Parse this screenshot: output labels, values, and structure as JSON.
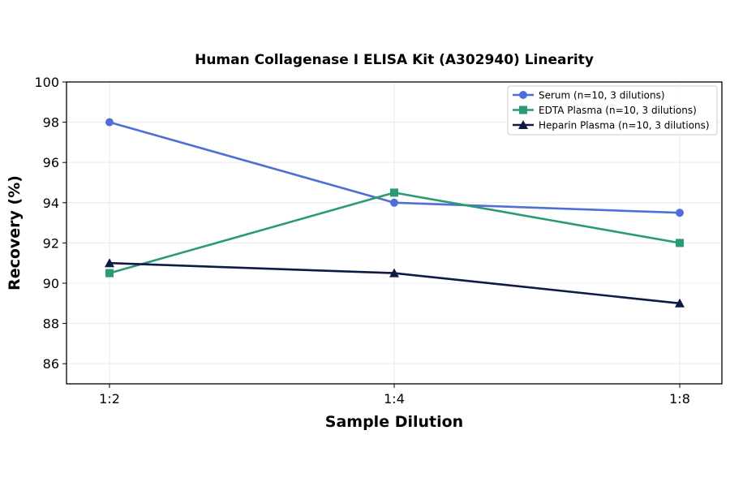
{
  "chart_data": {
    "type": "line",
    "title": "Human Collagenase I ELISA Kit (A302940) Linearity",
    "xlabel": "Sample Dilution",
    "ylabel": "Recovery (%)",
    "categories": [
      "1:2",
      "1:4",
      "1:8"
    ],
    "ylim": [
      85,
      100
    ],
    "yticks": [
      86,
      88,
      90,
      92,
      94,
      96,
      98,
      100
    ],
    "grid": true,
    "legend_position": "top-right",
    "series": [
      {
        "name": "Serum (n=10, 3 dilutions)",
        "values": [
          98,
          94,
          93.5
        ],
        "color": "#4f6fd6",
        "marker": "circle"
      },
      {
        "name": "EDTA Plasma (n=10, 3 dilutions)",
        "values": [
          90.5,
          94.5,
          92
        ],
        "color": "#2a9a72",
        "marker": "square"
      },
      {
        "name": "Heparin Plasma (n=10, 3 dilutions)",
        "values": [
          91,
          90.5,
          89
        ],
        "color": "#0e1b45",
        "marker": "triangle"
      }
    ]
  }
}
